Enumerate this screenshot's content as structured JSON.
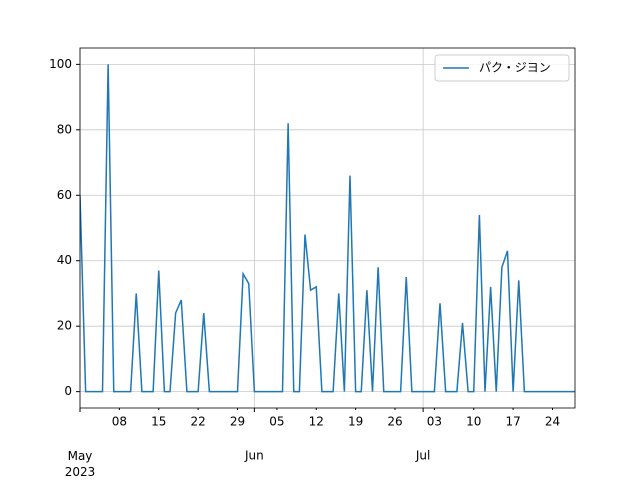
{
  "chart_data": {
    "type": "line",
    "x": [
      "2023-05-01",
      "2023-05-02",
      "2023-05-03",
      "2023-05-04",
      "2023-05-05",
      "2023-05-06",
      "2023-05-07",
      "2023-05-08",
      "2023-05-09",
      "2023-05-10",
      "2023-05-11",
      "2023-05-12",
      "2023-05-13",
      "2023-05-14",
      "2023-05-15",
      "2023-05-16",
      "2023-05-17",
      "2023-05-18",
      "2023-05-19",
      "2023-05-20",
      "2023-05-21",
      "2023-05-22",
      "2023-05-23",
      "2023-05-24",
      "2023-05-25",
      "2023-05-26",
      "2023-05-27",
      "2023-05-28",
      "2023-05-29",
      "2023-05-30",
      "2023-05-31",
      "2023-06-01",
      "2023-06-02",
      "2023-06-03",
      "2023-06-04",
      "2023-06-05",
      "2023-06-06",
      "2023-06-07",
      "2023-06-08",
      "2023-06-09",
      "2023-06-10",
      "2023-06-11",
      "2023-06-12",
      "2023-06-13",
      "2023-06-14",
      "2023-06-15",
      "2023-06-16",
      "2023-06-17",
      "2023-06-18",
      "2023-06-19",
      "2023-06-20",
      "2023-06-21",
      "2023-06-22",
      "2023-06-23",
      "2023-06-24",
      "2023-06-25",
      "2023-06-26",
      "2023-06-27",
      "2023-06-28",
      "2023-06-29",
      "2023-06-30",
      "2023-07-01",
      "2023-07-02",
      "2023-07-03",
      "2023-07-04",
      "2023-07-05",
      "2023-07-06",
      "2023-07-07",
      "2023-07-08",
      "2023-07-09",
      "2023-07-10",
      "2023-07-11",
      "2023-07-12",
      "2023-07-13",
      "2023-07-14",
      "2023-07-15",
      "2023-07-16",
      "2023-07-17",
      "2023-07-18",
      "2023-07-19",
      "2023-07-20",
      "2023-07-21",
      "2023-07-22",
      "2023-07-23",
      "2023-07-24",
      "2023-07-25",
      "2023-07-26",
      "2023-07-27",
      "2023-07-28"
    ],
    "series": [
      {
        "name": "パク・ジヨン",
        "color": "#1f77b4",
        "values": [
          60,
          0,
          0,
          0,
          0,
          100,
          0,
          0,
          0,
          0,
          30,
          0,
          0,
          0,
          37,
          0,
          0,
          24,
          28,
          0,
          0,
          0,
          24,
          0,
          0,
          0,
          0,
          0,
          0,
          36,
          33,
          0,
          0,
          0,
          0,
          0,
          0,
          82,
          0,
          0,
          48,
          31,
          32,
          0,
          0,
          0,
          30,
          0,
          66,
          0,
          0,
          31,
          0,
          38,
          0,
          0,
          0,
          0,
          35,
          0,
          0,
          0,
          0,
          0,
          27,
          0,
          0,
          0,
          21,
          0,
          0,
          54,
          0,
          32,
          0,
          38,
          43,
          0,
          34,
          0,
          0,
          0,
          0,
          0,
          0,
          0,
          0,
          0,
          0
        ]
      }
    ],
    "xlim": [
      "2023-05-01",
      "2023-07-28"
    ],
    "xticks": [
      {
        "value": "2023-05-01",
        "label": "May\n2023"
      },
      {
        "value": "2023-05-08",
        "label": "08"
      },
      {
        "value": "2023-05-15",
        "label": "15"
      },
      {
        "value": "2023-05-22",
        "label": "22"
      },
      {
        "value": "2023-05-29",
        "label": "29"
      },
      {
        "value": "2023-06-01",
        "label": "Jun"
      },
      {
        "value": "2023-06-05",
        "label": "05"
      },
      {
        "value": "2023-06-12",
        "label": "12"
      },
      {
        "value": "2023-06-19",
        "label": "19"
      },
      {
        "value": "2023-06-26",
        "label": "26"
      },
      {
        "value": "2023-07-01",
        "label": "Jul"
      },
      {
        "value": "2023-07-03",
        "label": "03"
      },
      {
        "value": "2023-07-10",
        "label": "10"
      },
      {
        "value": "2023-07-17",
        "label": "17"
      },
      {
        "value": "2023-07-24",
        "label": "24"
      }
    ],
    "ylim": [
      -5,
      105
    ],
    "yticks": [
      0,
      20,
      40,
      60,
      80,
      100
    ],
    "grid": true,
    "legend": "upper right"
  }
}
